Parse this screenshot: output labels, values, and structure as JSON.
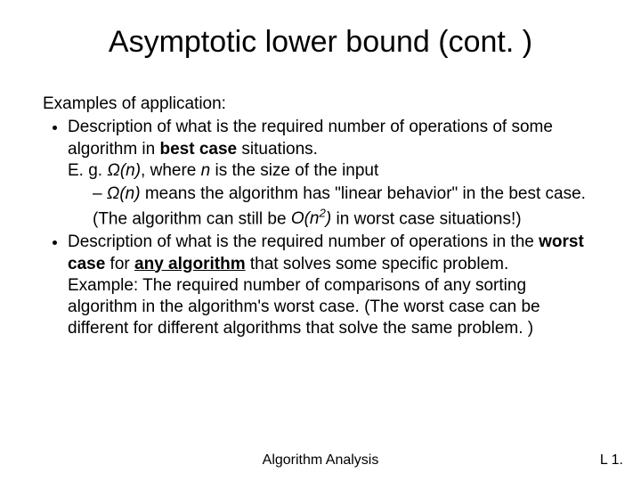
{
  "title": "Asymptotic lower bound (cont. )",
  "lead": "Examples of application:",
  "bullets": {
    "b1_l1": "Description of what is the required number of operations of some algorithm in ",
    "b1_bold1": "best case",
    "b1_l2": " situations.",
    "b1_l3_pre": "E. g. ",
    "b1_omega_n": "Ω(n)",
    "b1_l3_mid": ", where ",
    "b1_n": "n",
    "b1_l3_post": " is the size of the input",
    "sub1_omega_n": "Ω(n) ",
    "sub1_text1": " means the algorithm has \"linear behavior\" in the best case. (The algorithm can still be ",
    "sub1_On": "O(n",
    "sub1_sup": "2",
    "sub1_On_close": ")",
    "sub1_text2": " in worst case situations!)",
    "b2_l1": "Description of what is the required number of operations in the ",
    "b2_bold1": "worst case",
    "b2_l2": " for ",
    "b2_underline": "any algorithm",
    "b2_l3": " that solves some specific problem.",
    "b2_ex": "Example: The required number of comparisons of any sorting algorithm in the algorithm's worst case. (The worst case can be different for different algorithms that solve the same problem. )"
  },
  "footer_center": "Algorithm Analysis",
  "footer_right": "L 1."
}
